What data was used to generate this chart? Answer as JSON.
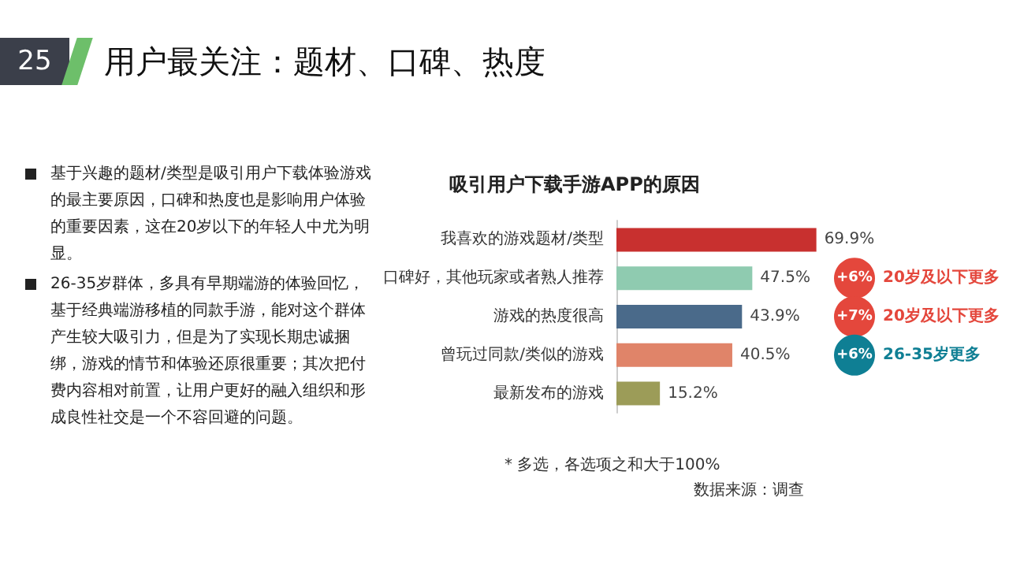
{
  "chart_data": {
    "type": "bar",
    "orientation": "horizontal",
    "title": "用户最关注：题材、口碑、热度",
    "subtitle": "吸引用户下载手游APP的原因",
    "categories": [
      "我喜欢的游戏题材/类型",
      "口碑好，其他玩家或者熟人推荐",
      "游戏的热度很高",
      "曾玩过同款/类似的游戏",
      "最新发布的游戏"
    ],
    "values": [
      69.9,
      47.5,
      43.9,
      40.5,
      15.2
    ],
    "colors": [
      "#c8302f",
      "#8fcbb0",
      "#4a6a8a",
      "#e08469",
      "#9c9c58"
    ],
    "value_labels": [
      "69.9%",
      "47.5%",
      "43.9%",
      "40.5%",
      "15.2%"
    ],
    "annotations": [
      "25",
      "基于兴趣的题材/类型是吸引用户下载体验游戏的最主要原因，口碑和热度也是影响用户体验的重要因素，这在20岁以下的年轻人中尤为明显。",
      "26-35岁群体，多具有早期端游的体验回忆，基于经典端游移植的同款手游，能对这个群体产生较大吸引力，但是为了实现长期忠诚捆绑，游戏的情节和体验还原很重要；其次把付费内容相对前置，让用户更好的融入组织和形成良性社交是一个不容回避的问题。",
      "* 多选，各选项之和大于100%",
      "数据来源：调查",
      "+6%",
      "20岁及以下更多",
      "+7%",
      "20岁及以下更多",
      "+6%",
      "26-35岁更多"
    ]
  }
}
